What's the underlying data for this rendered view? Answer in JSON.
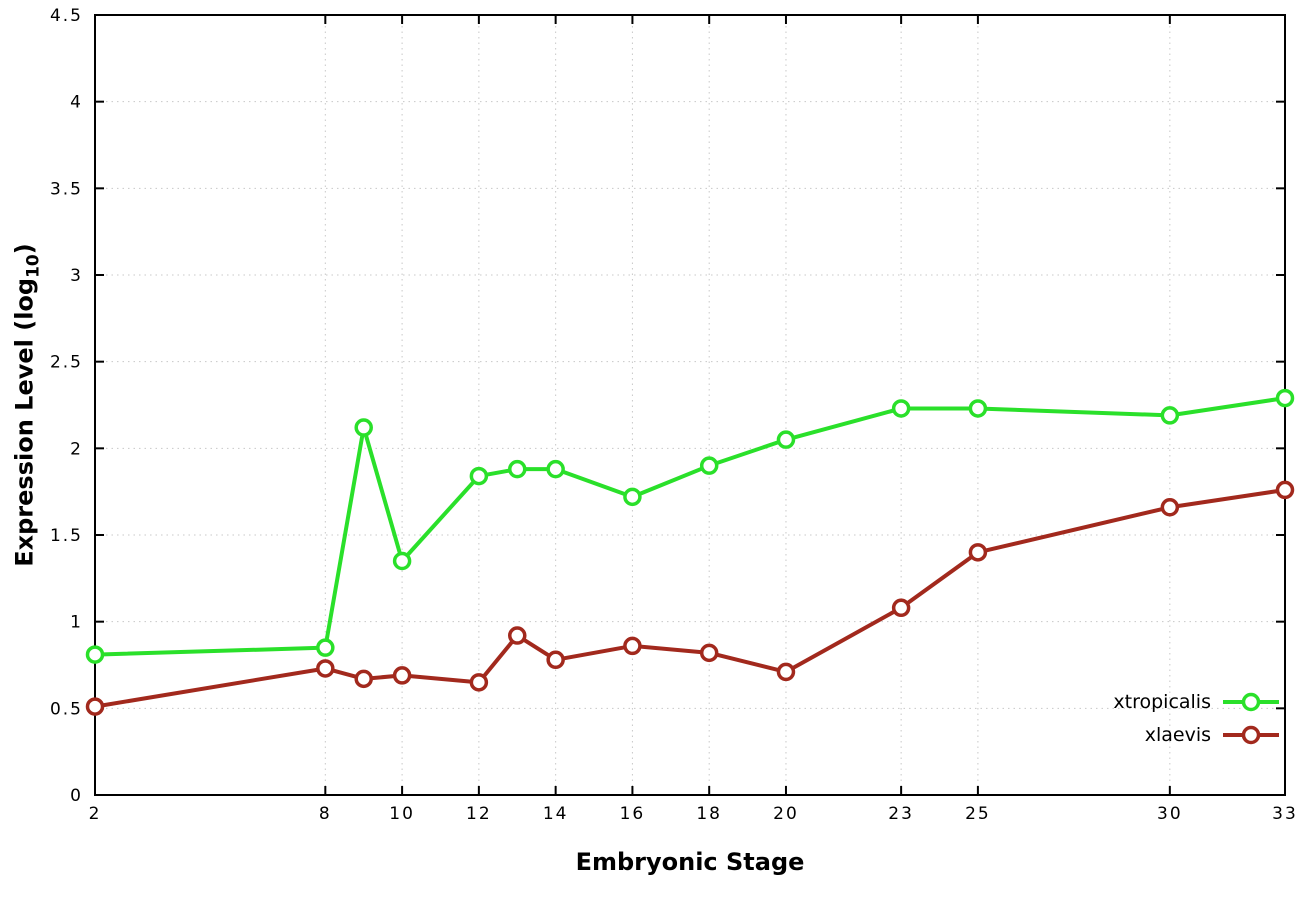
{
  "labels": {
    "ylabel_prefix": "Expression Level (log",
    "ylabel_sub": "10",
    "ylabel_suffix": ")"
  },
  "chart_data": {
    "type": "line",
    "title": "",
    "xlabel": "Embryonic Stage",
    "ylabel": "Expression Level (log10)",
    "xlim": [
      2,
      33
    ],
    "ylim": [
      0,
      4.5
    ],
    "grid": true,
    "legend_position": "bottom-right",
    "x": [
      2,
      8,
      9,
      10,
      12,
      13,
      14,
      16,
      18,
      20,
      23,
      25,
      30,
      33
    ],
    "xticks": [
      2,
      8,
      10,
      12,
      14,
      16,
      18,
      20,
      23,
      25,
      30,
      33
    ],
    "xtick_labels": [
      "2",
      "8",
      "10",
      "12",
      "14",
      "16",
      "18",
      "20",
      "23",
      "25",
      "30",
      "33"
    ],
    "yticks": [
      0,
      0.5,
      1,
      1.5,
      2,
      2.5,
      3,
      3.5,
      4,
      4.5
    ],
    "ytick_labels": [
      "0",
      "0.5",
      "1",
      "1.5",
      "2",
      "2.5",
      "3",
      "3.5",
      "4",
      "4.5"
    ],
    "series": [
      {
        "name": "xtropicalis",
        "color": "#2ae02a",
        "values": [
          0.81,
          0.85,
          2.12,
          1.35,
          1.84,
          1.88,
          1.88,
          1.72,
          1.9,
          2.05,
          2.23,
          2.23,
          2.19,
          2.29
        ]
      },
      {
        "name": "xlaevis",
        "color": "#a2291d",
        "values": [
          0.51,
          0.73,
          0.67,
          0.69,
          0.65,
          0.92,
          0.78,
          0.86,
          0.82,
          0.71,
          1.08,
          1.4,
          1.66,
          1.76
        ]
      }
    ],
    "style": {
      "grid_color": "#c8c8c8",
      "border_color": "#000000",
      "marker_fill": "#ffffff",
      "line_width": 4,
      "marker_radius": 7.5
    }
  }
}
